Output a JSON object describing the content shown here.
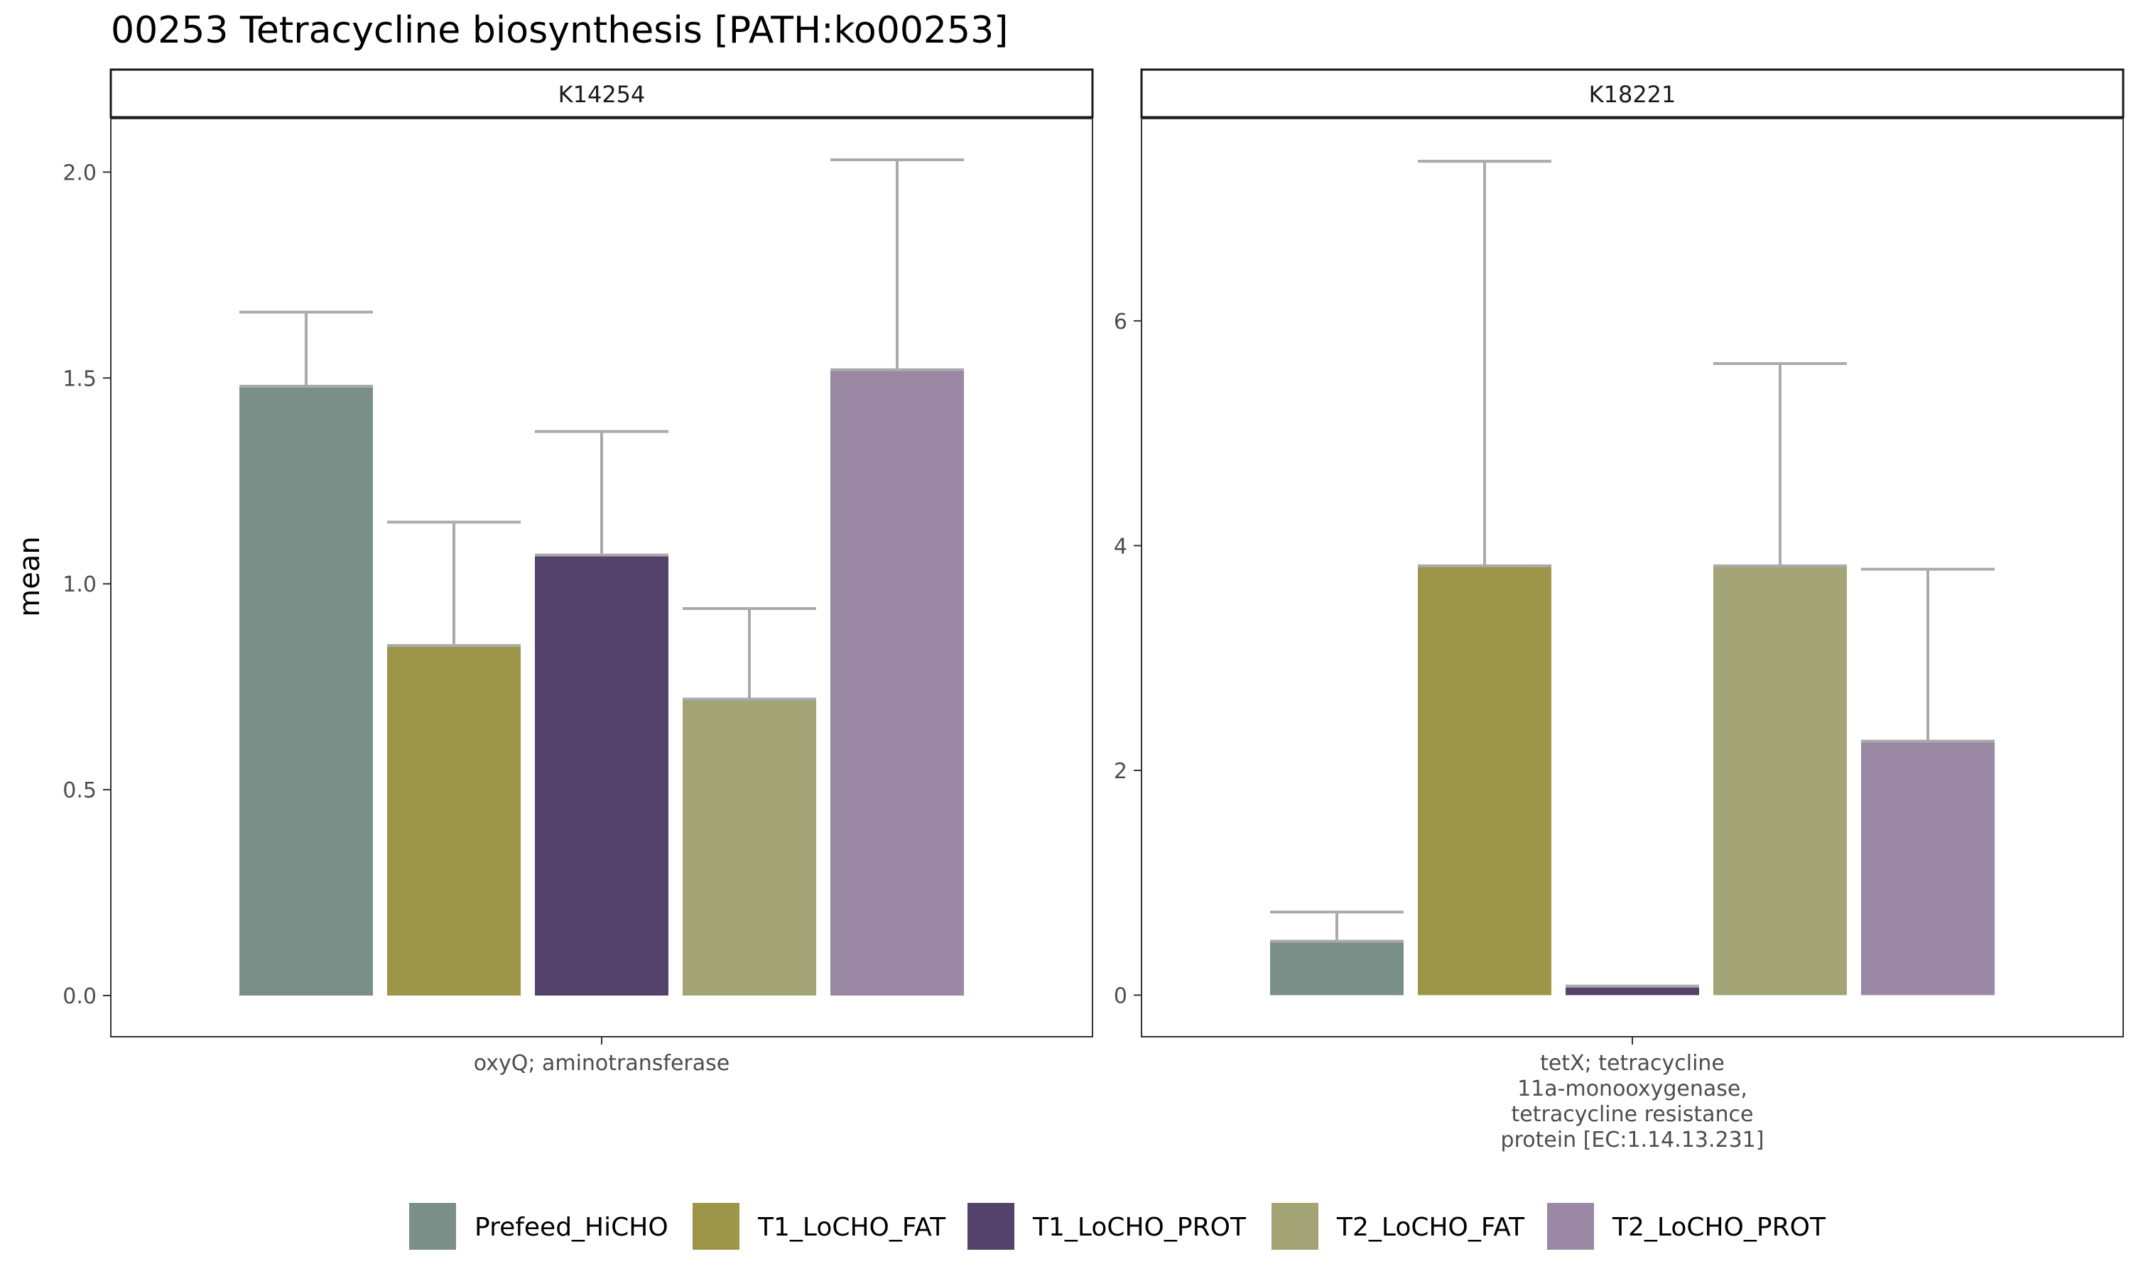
{
  "chart_data": {
    "type": "bar",
    "title": "00253 Tetracycline biosynthesis [PATH:ko00253]",
    "ylabel": "mean",
    "legend": {
      "position": "bottom",
      "items": [
        {
          "name": "Prefeed_HiCHO",
          "color": "#7A8F88"
        },
        {
          "name": "T1_LoCHO_FAT",
          "color": "#9D9547"
        },
        {
          "name": "T1_LoCHO_PROT",
          "color": "#54426B"
        },
        {
          "name": "T2_LoCHO_FAT",
          "color": "#A2A476"
        },
        {
          "name": "T2_LoCHO_PROT",
          "color": "#9A87A4"
        }
      ]
    },
    "facets": [
      {
        "strip": "K14254",
        "x_label_lines": [
          "oxyQ; aminotransferase"
        ],
        "ylim": [
          -0.1,
          2.13
        ],
        "y_ticks": [
          0.0,
          0.5,
          1.0,
          1.5,
          2.0
        ],
        "y_tick_labels": [
          "0.0",
          "0.5",
          "1.0",
          "1.5",
          "2.0"
        ],
        "values": [
          1.48,
          0.85,
          1.07,
          0.72,
          1.52
        ],
        "error_upper": [
          1.66,
          1.15,
          1.37,
          0.94,
          2.03
        ]
      },
      {
        "strip": "K18221",
        "x_label_lines": [
          "tetX; tetracycline",
          "11a-monooxygenase,",
          "tetracycline resistance",
          "protein [EC:1.14.13.231]"
        ],
        "ylim": [
          -0.37,
          7.8
        ],
        "y_ticks": [
          0,
          2,
          4,
          6
        ],
        "y_tick_labels": [
          "0",
          "2",
          "4",
          "6"
        ],
        "values": [
          0.48,
          3.82,
          0.08,
          3.82,
          2.26
        ],
        "error_upper": [
          0.74,
          7.42,
          0.08,
          5.62,
          3.79
        ]
      }
    ]
  }
}
